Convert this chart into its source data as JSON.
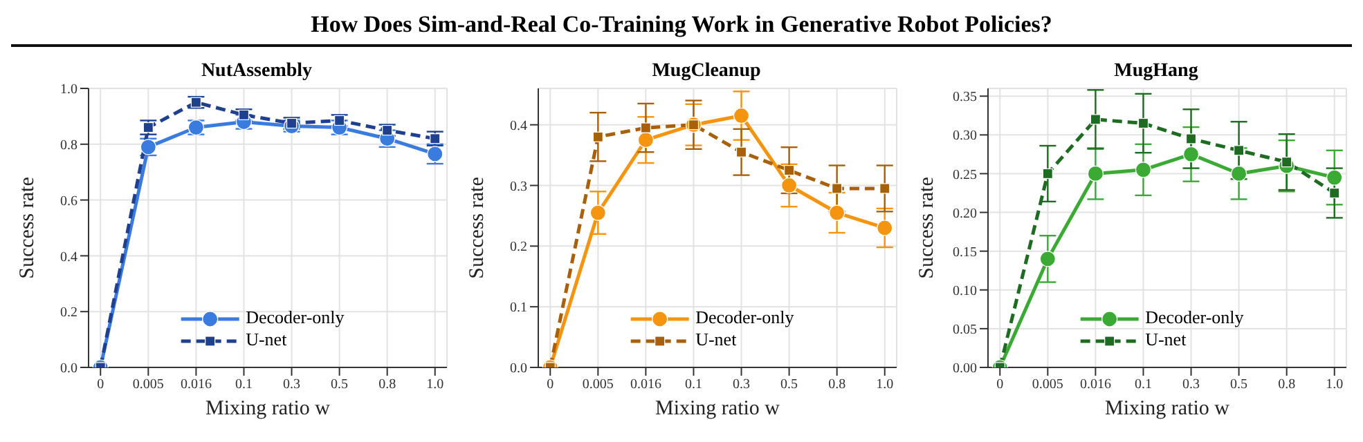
{
  "chart_data": [
    {
      "type": "line",
      "title": "NutAssembly",
      "annotations": [
        "How Does Sim-and-Real Co-Training Work in Generative Robot Policies?"
      ],
      "xlabel": "Mixing ratio w",
      "ylabel": "Success rate",
      "categories": [
        "0",
        "0.005",
        "0.016",
        "0.1",
        "0.3",
        "0.5",
        "0.8",
        "1.0"
      ],
      "ylim": [
        0,
        1
      ],
      "yticks": [
        {
          "value": 0,
          "label": "0.0"
        },
        {
          "value": 0.2,
          "label": "0.2"
        },
        {
          "value": 0.4,
          "label": "0.4"
        },
        {
          "value": 0.6,
          "label": "0.6"
        },
        {
          "value": 0.8,
          "label": "0.8"
        },
        {
          "value": 1,
          "label": "1.0"
        }
      ],
      "grid": true,
      "legend": "bottom",
      "series": [
        {
          "name": "Decoder-only",
          "color": "#3a7be0",
          "marker": "circle",
          "line_style": "solid",
          "values": [
            0,
            0.79,
            0.86,
            0.88,
            0.865,
            0.86,
            0.82,
            0.765
          ],
          "errors": [
            null,
            0.03,
            0.025,
            0.025,
            0.02,
            0.025,
            0.03,
            0.035
          ]
        },
        {
          "name": "U-net",
          "color": "#1f3f8f",
          "marker": "square",
          "line_style": "dashed",
          "values": [
            0,
            0.86,
            0.95,
            0.905,
            0.875,
            0.885,
            0.85,
            0.82
          ],
          "errors": [
            null,
            0.025,
            0.02,
            0.02,
            0.02,
            0.02,
            0.02,
            0.025
          ]
        }
      ]
    },
    {
      "type": "line",
      "title": "MugCleanup",
      "xlabel": "Mixing ratio w",
      "ylabel": "Success rate",
      "categories": [
        "0",
        "0.005",
        "0.016",
        "0.1",
        "0.3",
        "0.5",
        "0.8",
        "1.0"
      ],
      "ylim": [
        0,
        0.46
      ],
      "yticks": [
        {
          "value": 0,
          "label": "0.0"
        },
        0.1,
        0.2,
        0.3,
        0.4
      ],
      "grid": true,
      "legend": "bottom",
      "series": [
        {
          "name": "Decoder-only",
          "color": "#f5940f",
          "marker": "circle",
          "line_style": "solid",
          "values": [
            0,
            0.255,
            0.375,
            0.4,
            0.415,
            0.3,
            0.255,
            0.23
          ],
          "errors": [
            null,
            0.035,
            0.038,
            0.034,
            0.04,
            0.035,
            0.033,
            0.032
          ]
        },
        {
          "name": "U-net",
          "color": "#a8600a",
          "marker": "square",
          "line_style": "dashed",
          "values": [
            0,
            0.38,
            0.395,
            0.4,
            0.355,
            0.325,
            0.295,
            0.295
          ],
          "errors": [
            null,
            0.04,
            0.04,
            0.04,
            0.038,
            0.038,
            0.038,
            0.038
          ]
        }
      ]
    },
    {
      "type": "line",
      "title": "MugHang",
      "xlabel": "Mixing ratio w",
      "ylabel": "Success rate",
      "categories": [
        "0",
        "0.005",
        "0.016",
        "0.1",
        "0.3",
        "0.5",
        "0.8",
        "1.0"
      ],
      "ylim": [
        0,
        0.36
      ],
      "yticks": [
        {
          "value": 0,
          "label": "0.00"
        },
        {
          "value": 0.05,
          "label": "0.05"
        },
        {
          "value": 0.1,
          "label": "0.10"
        },
        {
          "value": 0.15,
          "label": "0.15"
        },
        {
          "value": 0.2,
          "label": "0.20"
        },
        {
          "value": 0.25,
          "label": "0.25"
        },
        {
          "value": 0.3,
          "label": "0.30"
        },
        {
          "value": 0.35,
          "label": "0.35"
        }
      ],
      "grid": true,
      "legend": "bottom",
      "series": [
        {
          "name": "Decoder-only",
          "color": "#3aaa35",
          "marker": "circle",
          "line_style": "solid",
          "values": [
            0,
            0.14,
            0.25,
            0.255,
            0.275,
            0.25,
            0.26,
            0.245
          ],
          "errors": [
            null,
            0.03,
            0.033,
            0.033,
            0.035,
            0.033,
            0.033,
            0.035
          ]
        },
        {
          "name": "U-net",
          "color": "#1e6b22",
          "marker": "square",
          "line_style": "dashed",
          "values": [
            0,
            0.25,
            0.32,
            0.315,
            0.295,
            0.28,
            0.265,
            0.225
          ],
          "errors": [
            null,
            0.036,
            0.038,
            0.038,
            0.038,
            0.037,
            0.036,
            0.032
          ]
        }
      ]
    }
  ]
}
